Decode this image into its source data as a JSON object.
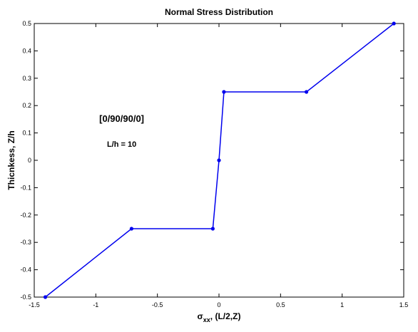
{
  "chart_data": {
    "type": "line",
    "title": "Normal Stress Distribution",
    "xlabel_main": "σ",
    "xlabel_sub": "xx",
    "xlabel_rest": ", (L/2,Z)",
    "ylabel": "Thicnkess, Z/h",
    "xlim": [
      -1.5,
      1.5
    ],
    "ylim": [
      -0.5,
      0.5
    ],
    "xticks": [
      -1.5,
      -1,
      -0.5,
      0,
      0.5,
      1,
      1.5
    ],
    "xtick_labels": [
      "-1.5",
      "-1",
      "-0.5",
      "0",
      "0.5",
      "1",
      "1.5"
    ],
    "yticks": [
      -0.5,
      -0.4,
      -0.3,
      -0.2,
      -0.1,
      0,
      0.1,
      0.2,
      0.3,
      0.4,
      0.5
    ],
    "ytick_labels": [
      "-0.5",
      "-0.4",
      "-0.3",
      "-0.2",
      "-0.1",
      "0",
      "0.1",
      "0.2",
      "0.3",
      "0.4",
      "0.5"
    ],
    "grid": false,
    "series": [
      {
        "color": "#0000ee",
        "x": [
          -1.41,
          -0.71,
          -0.05,
          0.0,
          0.04,
          0.71,
          1.42
        ],
        "y": [
          -0.5,
          -0.25,
          -0.25,
          0.0,
          0.25,
          0.25,
          0.5
        ]
      }
    ],
    "annotations": [
      {
        "text": "[0/90/90/0]",
        "x": -0.79,
        "y": 0.14,
        "style": "big"
      },
      {
        "text": "L/h = 10",
        "x": -0.79,
        "y": 0.05,
        "style": "small"
      }
    ]
  }
}
